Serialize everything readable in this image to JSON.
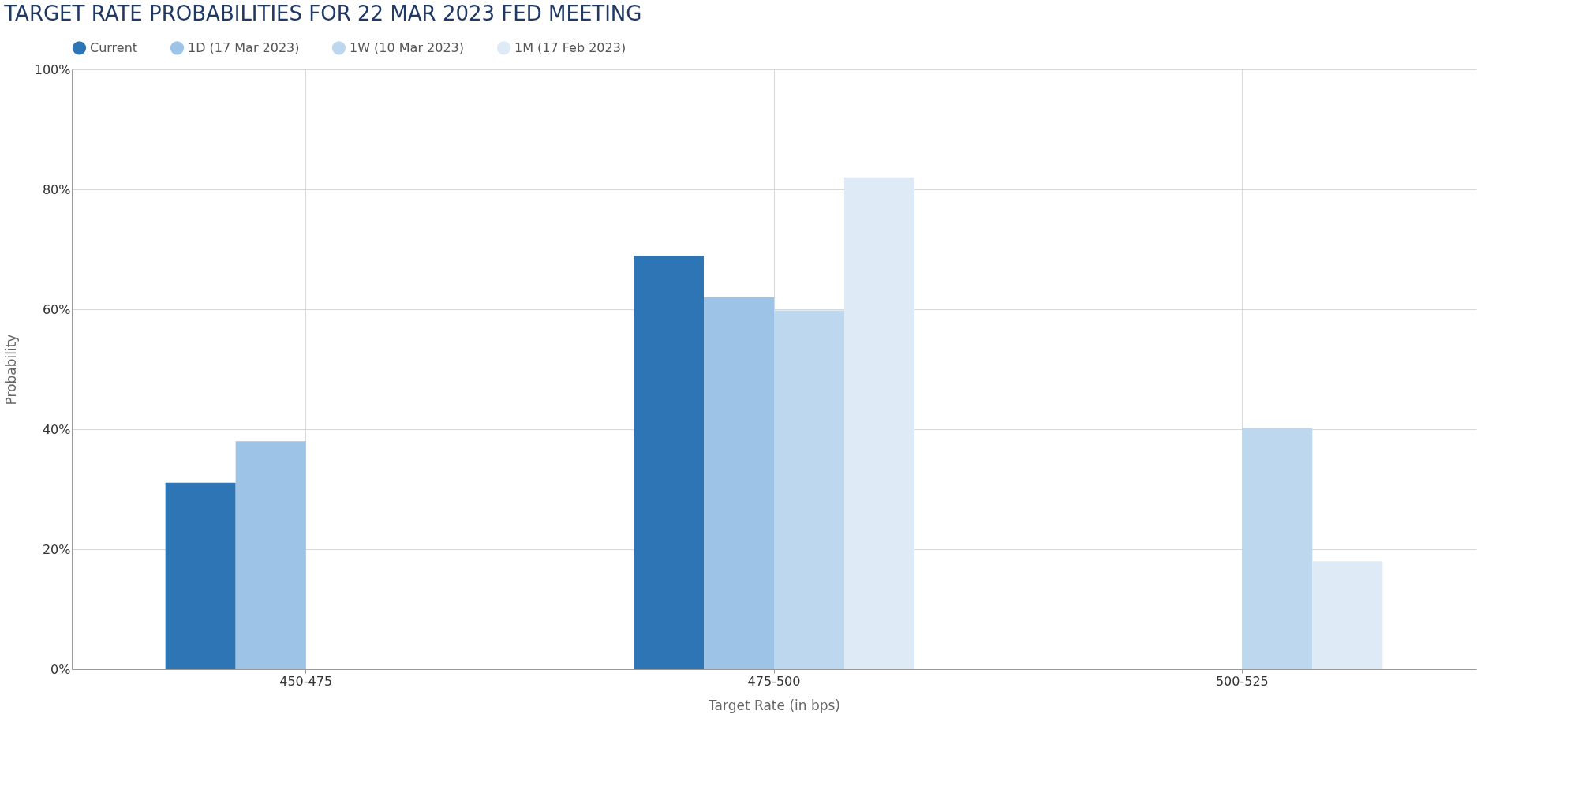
{
  "chart_data": {
    "type": "bar",
    "title": "TARGET RATE PROBABILITIES FOR 22 MAR 2023 FED MEETING",
    "xlabel": "Target Rate (in bps)",
    "ylabel": "Probability",
    "categories": [
      "450-475",
      "475-500",
      "500-525"
    ],
    "series": [
      {
        "name": "Current",
        "color": "#2e75b6",
        "values": [
          31.1,
          68.9,
          0
        ]
      },
      {
        "name": "1D (17 Mar 2023)",
        "color": "#9dc3e6",
        "values": [
          38.0,
          62.0,
          0
        ]
      },
      {
        "name": "1W (10 Mar 2023)",
        "color": "#bdd7ee",
        "values": [
          0,
          59.8,
          40.2
        ]
      },
      {
        "name": "1M (17 Feb 2023)",
        "color": "#deebf7",
        "values": [
          0,
          82.0,
          18.0
        ]
      }
    ],
    "ylim": [
      0,
      100
    ],
    "yticks": [
      {
        "value": 0,
        "label": "0%"
      },
      {
        "value": 20,
        "label": "20%"
      },
      {
        "value": 40,
        "label": "40%"
      },
      {
        "value": 60,
        "label": "60%"
      },
      {
        "value": 80,
        "label": "80%"
      },
      {
        "value": 100,
        "label": "100%"
      }
    ],
    "grid": true,
    "legend": "top"
  }
}
